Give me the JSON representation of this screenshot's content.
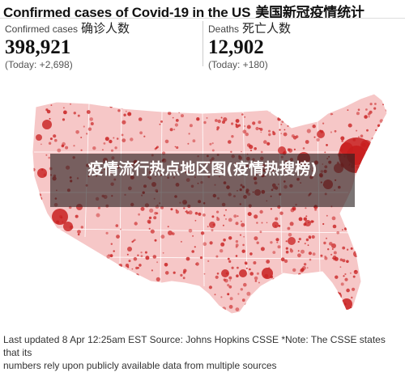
{
  "header": {
    "title_en": "Confirmed cases of Covid-19 in the US",
    "title_cn": "美国新冠疫情统计"
  },
  "stats": {
    "cases": {
      "label_en": "Confirmed cases",
      "label_cn": "确诊人数",
      "value": "398,921",
      "today": "(Today: +2,698)"
    },
    "deaths": {
      "label_en": "Deaths",
      "label_cn": "死亡人数",
      "value": "12,902",
      "today": "(Today: +180)"
    }
  },
  "overlay": {
    "text": "疫情流行热点地区图(疫情热搜榜)"
  },
  "footer": {
    "line1": "Last updated 8 Apr 12:25am EST Source: Johns Hopkins CSSE *Note: The CSSE states that its",
    "line2": "numbers rely upon publicly available data from multiple sources"
  },
  "colors": {
    "land": "#f6c7c7",
    "state_border": "#ffffff",
    "dot": "#c81e1e",
    "overlay_bg": "rgba(40,30,30,0.62)"
  }
}
